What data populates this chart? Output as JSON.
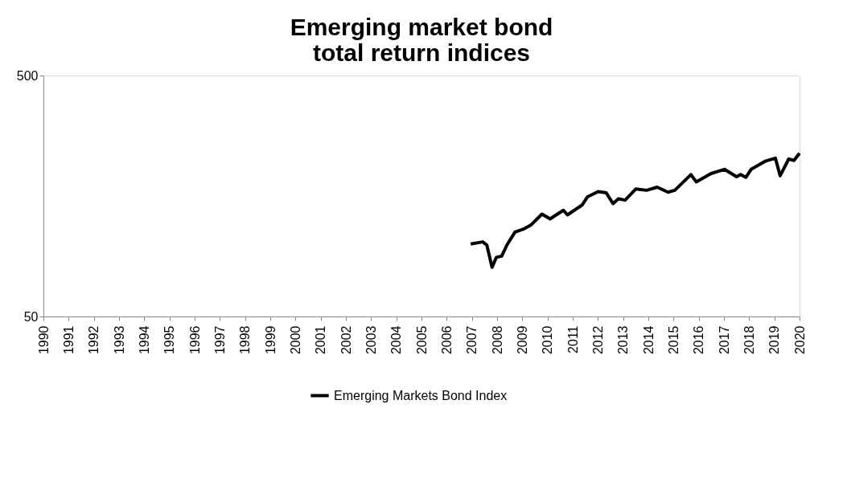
{
  "chart_data": {
    "type": "line",
    "title": "Emerging market bond total return indices",
    "x": [
      2006.95,
      2007.43,
      2007.59,
      2007.8,
      2007.97,
      2008.18,
      2008.39,
      2008.71,
      2009.03,
      2009.35,
      2009.78,
      2010.1,
      2010.63,
      2010.79,
      2011.37,
      2011.59,
      2012.01,
      2012.33,
      2012.6,
      2012.81,
      2013.08,
      2013.5,
      2013.93,
      2014.35,
      2014.78,
      2015.05,
      2015.69,
      2015.9,
      2016.49,
      2017.02,
      2017.5,
      2017.66,
      2017.87,
      2018.08,
      2018.62,
      2019.04,
      2019.23,
      2019.57,
      2019.78,
      2020.0
    ],
    "series": [
      {
        "name": "Emerging Markets Bond Index",
        "color": "#000000",
        "values": [
          100,
          102,
          99,
          80,
          88,
          89,
          99,
          112,
          115,
          120,
          133,
          127,
          138,
          132,
          145,
          157,
          165,
          163,
          147,
          154,
          152,
          169,
          167,
          172,
          164,
          167,
          194,
          181,
          196,
          204,
          190,
          194,
          189,
          204,
          220,
          227,
          192,
          225,
          222,
          238
        ]
      }
    ],
    "xlim": [
      1990,
      2020
    ],
    "xticks": [
      1990,
      1991,
      1992,
      1993,
      1994,
      1995,
      1996,
      1997,
      1998,
      1999,
      2000,
      2001,
      2002,
      2003,
      2004,
      2005,
      2006,
      2007,
      2008,
      2009,
      2010,
      2011,
      2012,
      2013,
      2014,
      2015,
      2016,
      2017,
      2018,
      2019,
      2020
    ],
    "ylim": [
      50,
      500
    ],
    "yticks": [
      50,
      500
    ],
    "log": true,
    "grid": false,
    "legend": "bottom",
    "marker": "none",
    "line_style": "solid"
  }
}
